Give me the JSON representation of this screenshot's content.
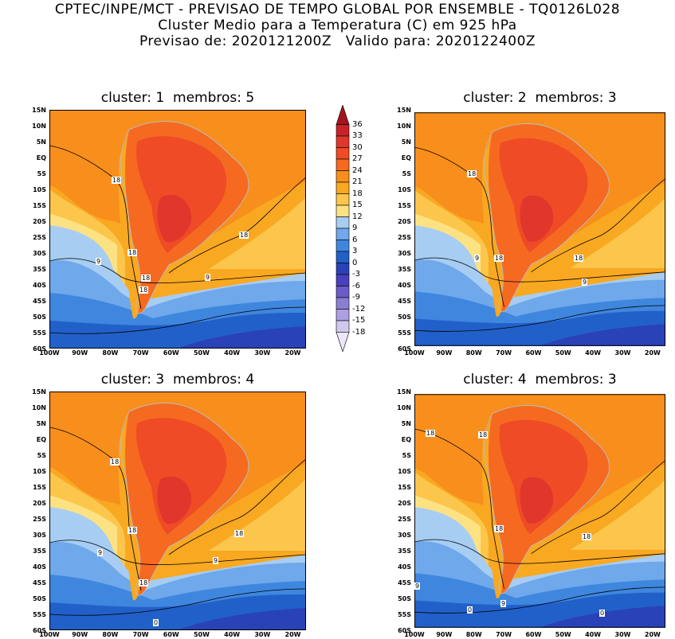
{
  "header": {
    "line1": "CPTEC/INPE/MCT - PREVISAO DE TEMPO GLOBAL POR ENSEMBLE - TQ0126L028",
    "line2": "Cluster Medio para a Temperatura (C) em 925 hPa",
    "line3": "Previsao de: 2020121200Z   Valido para: 2020122400Z"
  },
  "panels": [
    {
      "title": "cluster: 1  membros: 5",
      "contour_labels": [
        "18",
        "18",
        "18",
        "18",
        "18",
        "9",
        "9"
      ]
    },
    {
      "title": "cluster: 2  membros: 3",
      "contour_labels": [
        "18",
        "18",
        "18",
        "9",
        "9"
      ]
    },
    {
      "title": "cluster: 3  membros: 4",
      "contour_labels": [
        "18",
        "18",
        "18",
        "18",
        "9",
        "9",
        "0"
      ]
    },
    {
      "title": "cluster: 4  membros: 3",
      "contour_labels": [
        "18",
        "18",
        "18",
        "18",
        "9",
        "9",
        "0",
        "0"
      ]
    }
  ],
  "lat_ticks": [
    "15N",
    "10N",
    "5N",
    "EQ",
    "5S",
    "10S",
    "15S",
    "20S",
    "25S",
    "30S",
    "35S",
    "40S",
    "45S",
    "50S",
    "55S",
    "60S"
  ],
  "lon_ticks": [
    "100W",
    "90W",
    "80W",
    "70W",
    "60W",
    "50W",
    "40W",
    "30W",
    "20W"
  ],
  "colorbar": {
    "labels": [
      "36",
      "33",
      "30",
      "27",
      "24",
      "21",
      "18",
      "15",
      "12",
      "9",
      "6",
      "3",
      "0",
      "-3",
      "-6",
      "-9",
      "-12",
      "-15",
      "-18"
    ],
    "colors": [
      "#a3141c",
      "#c8232a",
      "#e0362c",
      "#ef4b26",
      "#f56a20",
      "#f88e1c",
      "#f9a821",
      "#fcc64d",
      "#fde283",
      "#a7cdf2",
      "#6fa8eb",
      "#3f86de",
      "#2260c9",
      "#2a42b7",
      "#4a3fbd",
      "#6a5cc9",
      "#8a7ed3",
      "#ad9fe0",
      "#d2c8ef",
      "#ece6f8"
    ]
  }
}
